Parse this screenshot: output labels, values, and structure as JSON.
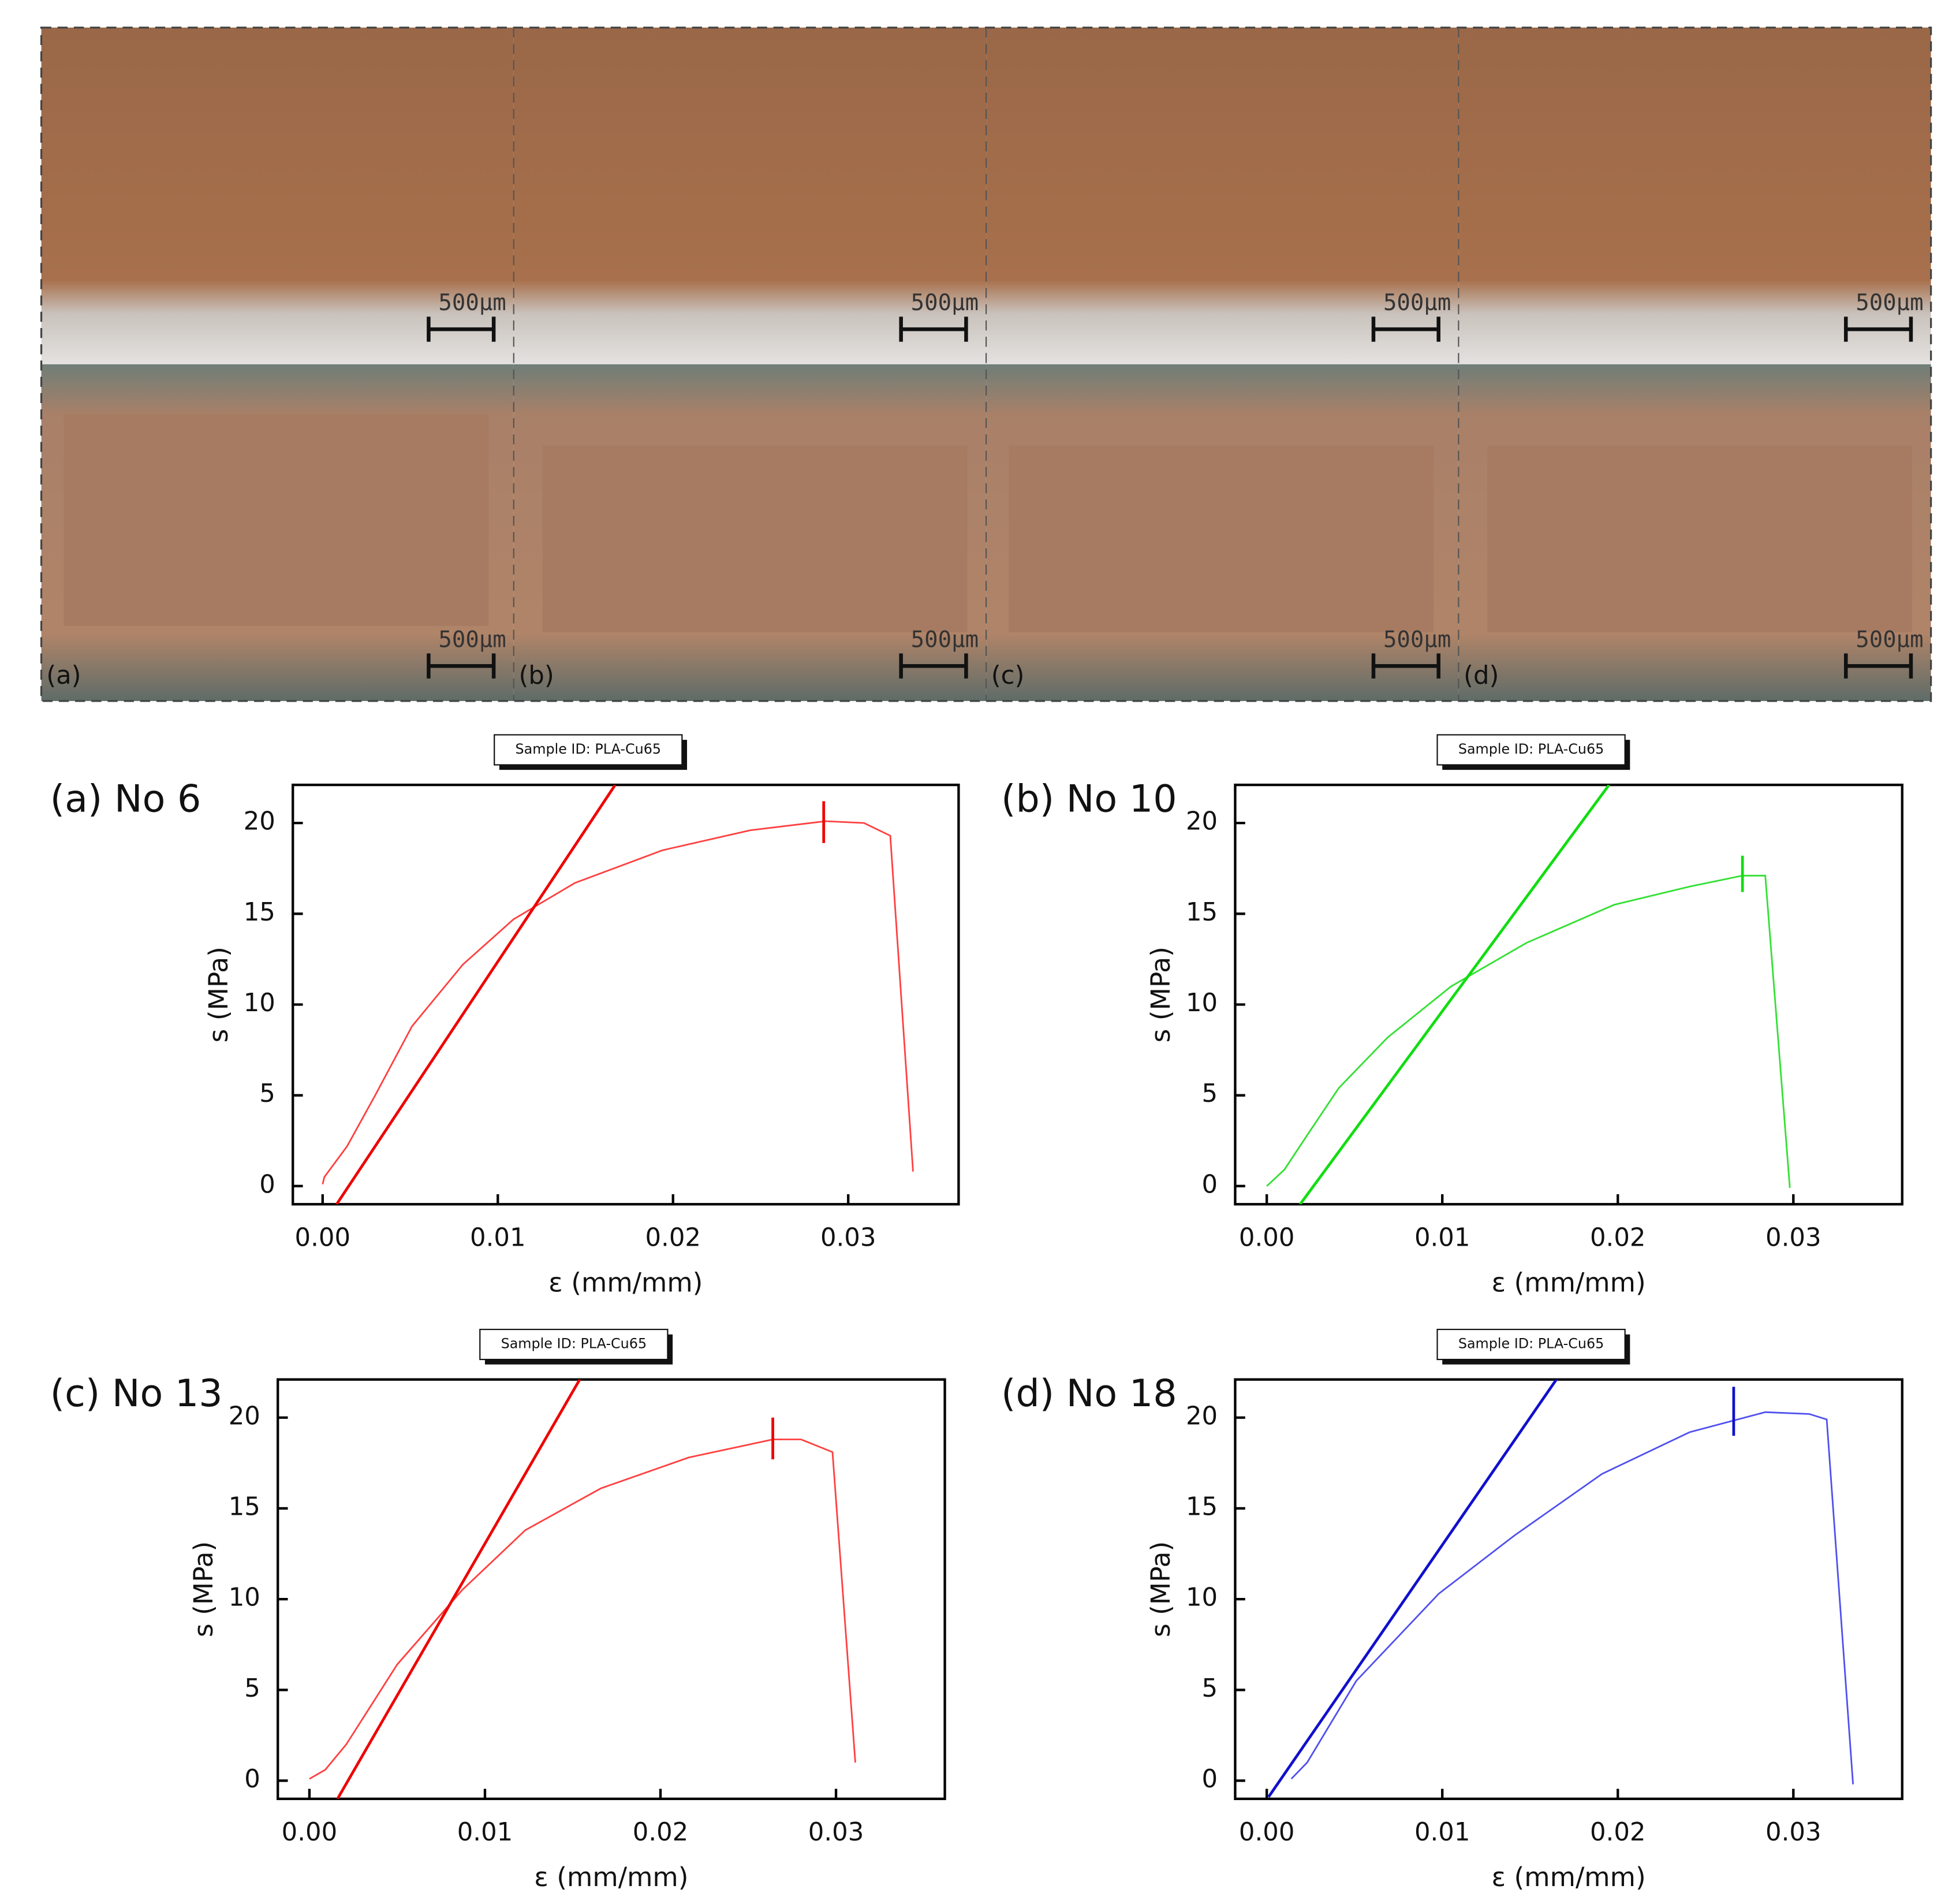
{
  "photos": {
    "panels": [
      {
        "label": "(a)",
        "scale_bars": [
          "500µm",
          "500µm"
        ]
      },
      {
        "label": "(b)",
        "scale_bars": [
          "500µm",
          "500µm"
        ]
      },
      {
        "label": "(c)",
        "scale_bars": [
          "500µm",
          "500µm"
        ]
      },
      {
        "label": "(d)",
        "scale_bars": [
          "500µm",
          "500µm"
        ]
      }
    ]
  },
  "chart_data": [
    {
      "type": "line",
      "title": "(a) No 6",
      "subtitle": "Sample ID: PLA-Cu65",
      "xlabel": "ε (mm/mm)",
      "ylabel": "s (MPa)",
      "xlim": [
        -0.0017,
        0.0363
      ],
      "ylim": [
        -1,
        22.1
      ],
      "xticks": [
        {
          "value": 0,
          "label": "0.00"
        },
        0.01,
        0.02,
        0.03
      ],
      "yticks": [
        0,
        5,
        10,
        15,
        20
      ],
      "series": [
        {
          "color": "#ff4040",
          "x": [
            0,
            0.0001,
            0.0014,
            0.003,
            0.0051,
            0.008,
            0.0109,
            0.0144,
            0.0194,
            0.0244,
            0.0287,
            0.0309,
            0.0324,
            0.0337
          ],
          "values": [
            0.1,
            0.5,
            2.2,
            5,
            8.8,
            12.2,
            14.7,
            16.7,
            18.5,
            19.6,
            20.1,
            20,
            19.3,
            0.8
          ]
        },
        {
          "color": "#ee0000",
          "x": [
            0.0008,
            0.0167
          ],
          "values": [
            -1,
            22.1
          ]
        },
        {
          "color": "#ee0000",
          "x": [
            0.0286,
            0.0286
          ],
          "values": [
            18.9,
            21.2
          ]
        }
      ]
    },
    {
      "type": "line",
      "title": "(b) No 10",
      "subtitle": "Sample ID: PLA-Cu65",
      "xlabel": "ε (mm/mm)",
      "ylabel": "s (MPa)",
      "xlim": [
        -0.0018,
        0.0362
      ],
      "ylim": [
        -1,
        22.1
      ],
      "xticks": [
        {
          "value": 0,
          "label": "0.00"
        },
        0.01,
        0.02,
        0.03
      ],
      "yticks": [
        0,
        5,
        10,
        15,
        20
      ],
      "series": [
        {
          "color": "#33e033",
          "x": [
            0,
            0.001,
            0.0023,
            0.0041,
            0.0069,
            0.0105,
            0.0148,
            0.0198,
            0.0241,
            0.0271,
            0.0284,
            0.0298
          ],
          "values": [
            0,
            0.9,
            2.8,
            5.4,
            8.2,
            11,
            13.4,
            15.5,
            16.5,
            17.1,
            17.1,
            -0.1
          ]
        },
        {
          "color": "#11dd11",
          "x": [
            0.0019,
            0.0195
          ],
          "values": [
            -1,
            22.1
          ]
        },
        {
          "color": "#11dd11",
          "x": [
            0.0271,
            0.0271
          ],
          "values": [
            16.2,
            18.2
          ]
        }
      ]
    },
    {
      "type": "line",
      "title": "(c) No 13",
      "subtitle": "Sample ID: PLA-Cu65",
      "xlabel": "ε (mm/mm)",
      "ylabel": "s (MPa)",
      "xlim": [
        -0.0018,
        0.0362
      ],
      "ylim": [
        -1,
        22.1
      ],
      "xticks": [
        {
          "value": 0,
          "label": "0.00"
        },
        0.01,
        0.02,
        0.03
      ],
      "yticks": [
        0,
        5,
        10,
        15,
        20
      ],
      "series": [
        {
          "color": "#ff4040",
          "x": [
            0,
            0.0009,
            0.0021,
            0.005,
            0.0087,
            0.0123,
            0.0166,
            0.0216,
            0.0264,
            0.028,
            0.0298,
            0.0311
          ],
          "values": [
            0.1,
            0.6,
            2,
            6.4,
            10.5,
            13.8,
            16.1,
            17.8,
            18.8,
            18.8,
            18.1,
            1
          ]
        },
        {
          "color": "#ee0000",
          "x": [
            0.0016,
            0.0154
          ],
          "values": [
            -1,
            22.1
          ]
        },
        {
          "color": "#ee0000",
          "x": [
            0.0264,
            0.0264
          ],
          "values": [
            17.7,
            20
          ]
        }
      ]
    },
    {
      "type": "line",
      "title": "(d) No 18",
      "subtitle": "Sample ID: PLA-Cu65",
      "xlabel": "ε (mm/mm)",
      "ylabel": "s (MPa)",
      "xlim": [
        -0.0018,
        0.0362
      ],
      "ylim": [
        -1,
        22.1
      ],
      "xticks": [
        {
          "value": 0,
          "label": "0.00"
        },
        0.01,
        0.02,
        0.03
      ],
      "yticks": [
        0,
        5,
        10,
        15,
        20
      ],
      "series": [
        {
          "color": "#5050ee",
          "x": [
            0.0014,
            0.0023,
            0.0051,
            0.0098,
            0.0141,
            0.0191,
            0.0241,
            0.0284,
            0.0309,
            0.0319,
            0.0334
          ],
          "values": [
            0.1,
            1,
            5.5,
            10.3,
            13.5,
            16.9,
            19.2,
            20.3,
            20.2,
            19.9,
            -0.2
          ]
        },
        {
          "color": "#1010cc",
          "x": [
            0.0001,
            0.0165
          ],
          "values": [
            -0.9,
            22.1
          ]
        },
        {
          "color": "#1010cc",
          "x": [
            0.0266,
            0.0266
          ],
          "values": [
            19,
            21.7
          ]
        }
      ]
    }
  ]
}
